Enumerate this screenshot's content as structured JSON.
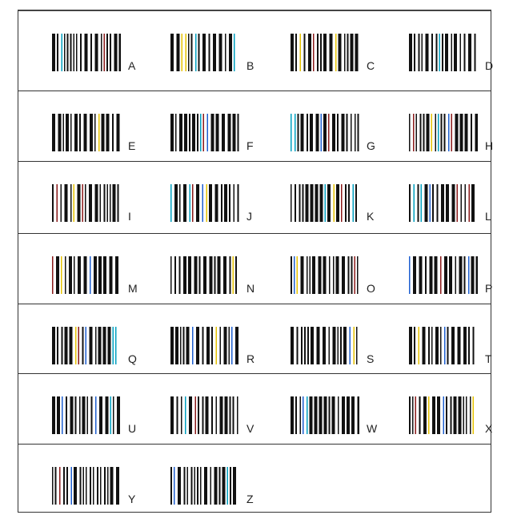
{
  "rows": [
    [
      "A",
      "B",
      "C",
      "D"
    ],
    [
      "E",
      "F",
      "G",
      "H"
    ],
    [
      "I",
      "J",
      "K",
      "L"
    ],
    [
      "M",
      "N",
      "O",
      "P"
    ],
    [
      "Q",
      "R",
      "S",
      "T"
    ],
    [
      "U",
      "V",
      "W",
      "X"
    ],
    [
      "Y",
      "Z"
    ]
  ],
  "colors": {
    "bar": "#111111",
    "fringe": [
      "#1e5fd0",
      "#e6c200",
      "#00a0c0",
      "#8b1a1a"
    ]
  }
}
